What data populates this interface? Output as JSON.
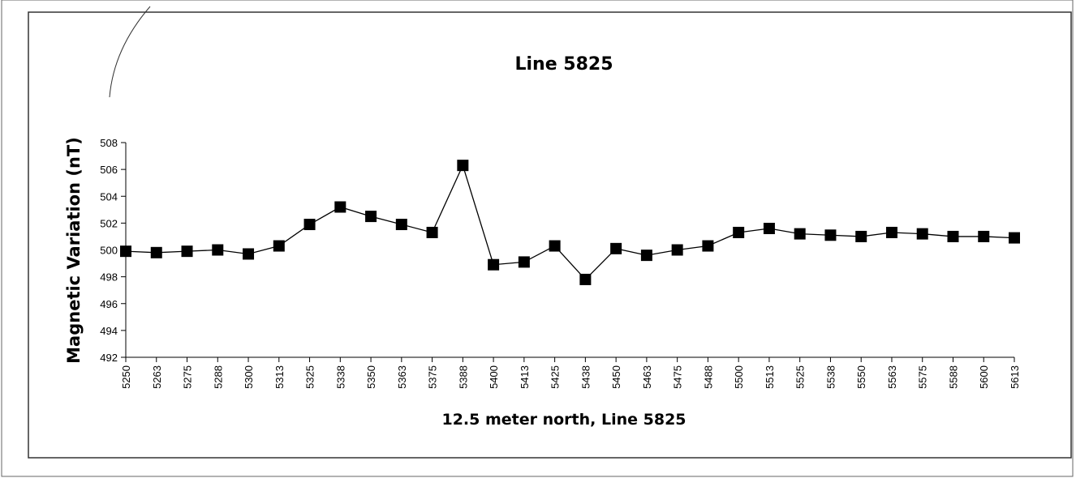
{
  "chart_data": {
    "type": "line",
    "title": "Line 5825",
    "x_label": "12.5 meter north, Line 5825",
    "y_label": "Magnetic Variation (nT)",
    "categories": [
      "5250",
      "5263",
      "5275",
      "5288",
      "5300",
      "5313",
      "5325",
      "5338",
      "5350",
      "5363",
      "5375",
      "5388",
      "5400",
      "5413",
      "5425",
      "5438",
      "5450",
      "5463",
      "5475",
      "5488",
      "5500",
      "5513",
      "5525",
      "5538",
      "5550",
      "5563",
      "5575",
      "5588",
      "5600",
      "5613"
    ],
    "series": [
      {
        "name": "Line 5825",
        "color": "#000000",
        "values": [
          499.9,
          499.8,
          499.9,
          500.0,
          499.7,
          500.3,
          501.9,
          503.2,
          502.5,
          501.9,
          501.3,
          506.3,
          498.9,
          499.1,
          500.3,
          497.8,
          500.1,
          499.6,
          500.0,
          500.3,
          501.3,
          501.6,
          501.2,
          501.1,
          501.0,
          501.3,
          501.2,
          501.0,
          501.0,
          500.9
        ]
      }
    ],
    "ylim": [
      492,
      508
    ],
    "yticks": [
      492,
      494,
      496,
      498,
      500,
      502,
      504,
      506,
      508
    ],
    "grid": false
  }
}
